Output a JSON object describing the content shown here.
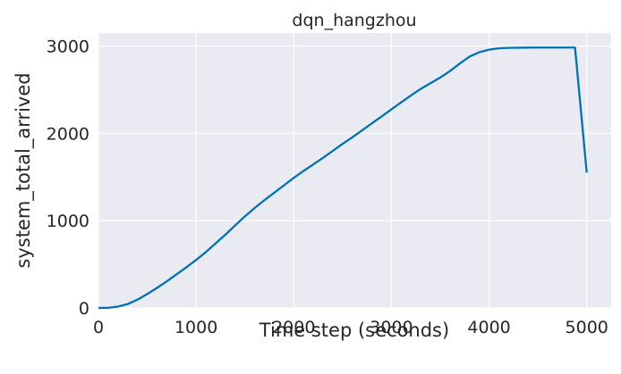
{
  "chart_data": {
    "type": "line",
    "title": "dqn_hangzhou",
    "xlabel": "Time step (seconds)",
    "ylabel": "system_total_arrived",
    "xlim": [
      0,
      5250
    ],
    "ylim": [
      0,
      3150
    ],
    "xticks": [
      0,
      1000,
      2000,
      3000,
      4000,
      5000
    ],
    "yticks": [
      0,
      1000,
      2000,
      3000
    ],
    "grid": true,
    "colors": {
      "background": "#eaeaf2",
      "grid": "#ffffff",
      "line": "#0072b2"
    },
    "series": [
      {
        "x": [
          0,
          100,
          200,
          300,
          400,
          500,
          600,
          700,
          800,
          900,
          1000,
          1100,
          1200,
          1300,
          1400,
          1500,
          1600,
          1700,
          1800,
          1900,
          2000,
          2100,
          2200,
          2300,
          2400,
          2500,
          2600,
          2700,
          2800,
          2900,
          3000,
          3100,
          3200,
          3300,
          3400,
          3500,
          3600,
          3700,
          3800,
          3900,
          4000,
          4100,
          4200,
          4300,
          4400,
          4500,
          4600,
          4700,
          4800,
          4880,
          5000
        ],
        "y": [
          0,
          2,
          15,
          45,
          95,
          160,
          230,
          305,
          385,
          465,
          550,
          640,
          740,
          840,
          945,
          1050,
          1145,
          1235,
          1320,
          1405,
          1490,
          1570,
          1645,
          1720,
          1800,
          1880,
          1955,
          2035,
          2115,
          2195,
          2275,
          2355,
          2435,
          2510,
          2575,
          2640,
          2715,
          2800,
          2880,
          2930,
          2960,
          2975,
          2980,
          2982,
          2983,
          2984,
          2984,
          2984,
          2984,
          2984,
          1550
        ]
      }
    ]
  }
}
